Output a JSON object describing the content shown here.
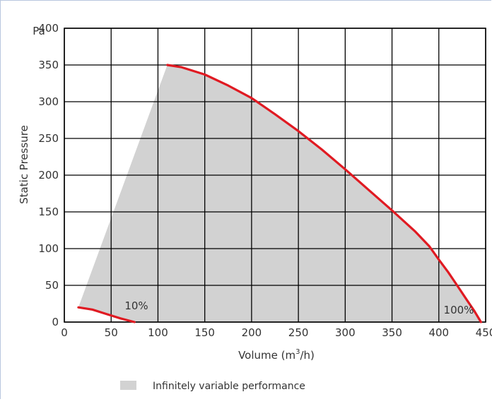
{
  "chart_data": {
    "type": "area",
    "y_unit_label": "Pa",
    "ylabel": "Static Pressure",
    "xlabel_prefix": "Volume (m",
    "xlabel_sup": "3",
    "xlabel_suffix": "/h)",
    "xlim": [
      0,
      450
    ],
    "ylim": [
      0,
      400
    ],
    "x_ticks": [
      0,
      50,
      100,
      150,
      200,
      250,
      300,
      350,
      400,
      450
    ],
    "y_ticks": [
      0,
      50,
      100,
      150,
      200,
      250,
      300,
      350,
      400
    ],
    "grid": true,
    "series": [
      {
        "name": "100%",
        "color": "#e01a22",
        "x": [
          110,
          125,
          150,
          175,
          200,
          225,
          250,
          275,
          300,
          325,
          350,
          375,
          390,
          400,
          410,
          420,
          430,
          438,
          445
        ],
        "y": [
          350,
          347,
          337,
          322,
          305,
          283,
          260,
          235,
          208,
          180,
          152,
          123,
          103,
          85,
          68,
          49,
          30,
          15,
          0
        ]
      },
      {
        "name": "10%",
        "color": "#e01a22",
        "x": [
          15,
          30,
          45,
          60,
          75
        ],
        "y": [
          20,
          17,
          11,
          5,
          0
        ]
      }
    ],
    "shaded_region": {
      "label": "Infinitely variable performance",
      "color": "#d2d2d2",
      "x": [
        15,
        110,
        125,
        150,
        175,
        200,
        225,
        250,
        275,
        300,
        325,
        350,
        375,
        390,
        400,
        410,
        420,
        430,
        438,
        445,
        75,
        60,
        45,
        30,
        15
      ],
      "y": [
        20,
        350,
        347,
        337,
        322,
        305,
        283,
        260,
        235,
        208,
        180,
        152,
        123,
        103,
        85,
        68,
        49,
        30,
        15,
        0,
        0,
        5,
        11,
        17,
        20
      ]
    },
    "legend": {
      "placement": "bottom",
      "label": "Infinitely variable performance"
    }
  }
}
